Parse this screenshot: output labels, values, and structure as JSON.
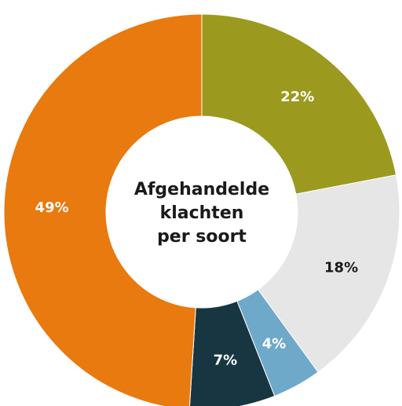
{
  "chart_data": {
    "type": "pie",
    "title_lines": [
      "Afgehandelde",
      "klachten",
      "per soort"
    ],
    "slices": [
      {
        "value": 22,
        "label": "22%",
        "color": "#9b9a1f",
        "label_color": "#ffffff"
      },
      {
        "value": 18,
        "label": "18%",
        "color": "#e6e6e6",
        "label_color": "#1a1a1a"
      },
      {
        "value": 4,
        "label": "4%",
        "color": "#6ea9c9",
        "label_color": "#ffffff"
      },
      {
        "value": 7,
        "label": "7%",
        "color": "#183642",
        "label_color": "#ffffff"
      },
      {
        "value": 49,
        "label": "49%",
        "color": "#e87a0f",
        "label_color": "#ffffff"
      }
    ]
  }
}
